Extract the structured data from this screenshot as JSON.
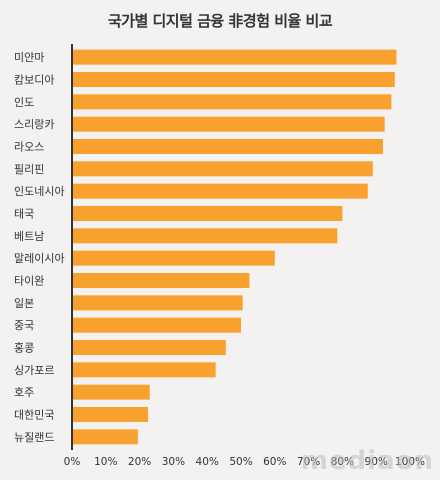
{
  "watermark": "mediaon",
  "chart_data": {
    "type": "bar",
    "orientation": "horizontal",
    "title": "국가별 디지털 금융 非경험 비율 비교",
    "categories": [
      "미얀마",
      "캄보디아",
      "인도",
      "스리랑카",
      "라오스",
      "필리핀",
      "인도네시아",
      "태국",
      "베트남",
      "말레이시아",
      "타이완",
      "일본",
      "중국",
      "홍콩",
      "싱가포르",
      "호주",
      "대한민국",
      "뉴질랜드"
    ],
    "values": [
      96,
      95.5,
      94.5,
      92.5,
      92,
      89,
      87.5,
      80,
      78.5,
      60,
      52.5,
      50.5,
      50,
      45.5,
      42.5,
      23,
      22.5,
      19.5
    ],
    "xlim": [
      0,
      100
    ],
    "ticks": [
      "0%",
      "10%",
      "20%",
      "30%",
      "40%",
      "50%",
      "60%",
      "70%",
      "80%",
      "90%",
      "100%"
    ],
    "bar_color": "#f9a12e",
    "axis_color": "#333333",
    "grid": false,
    "legend": "none"
  }
}
